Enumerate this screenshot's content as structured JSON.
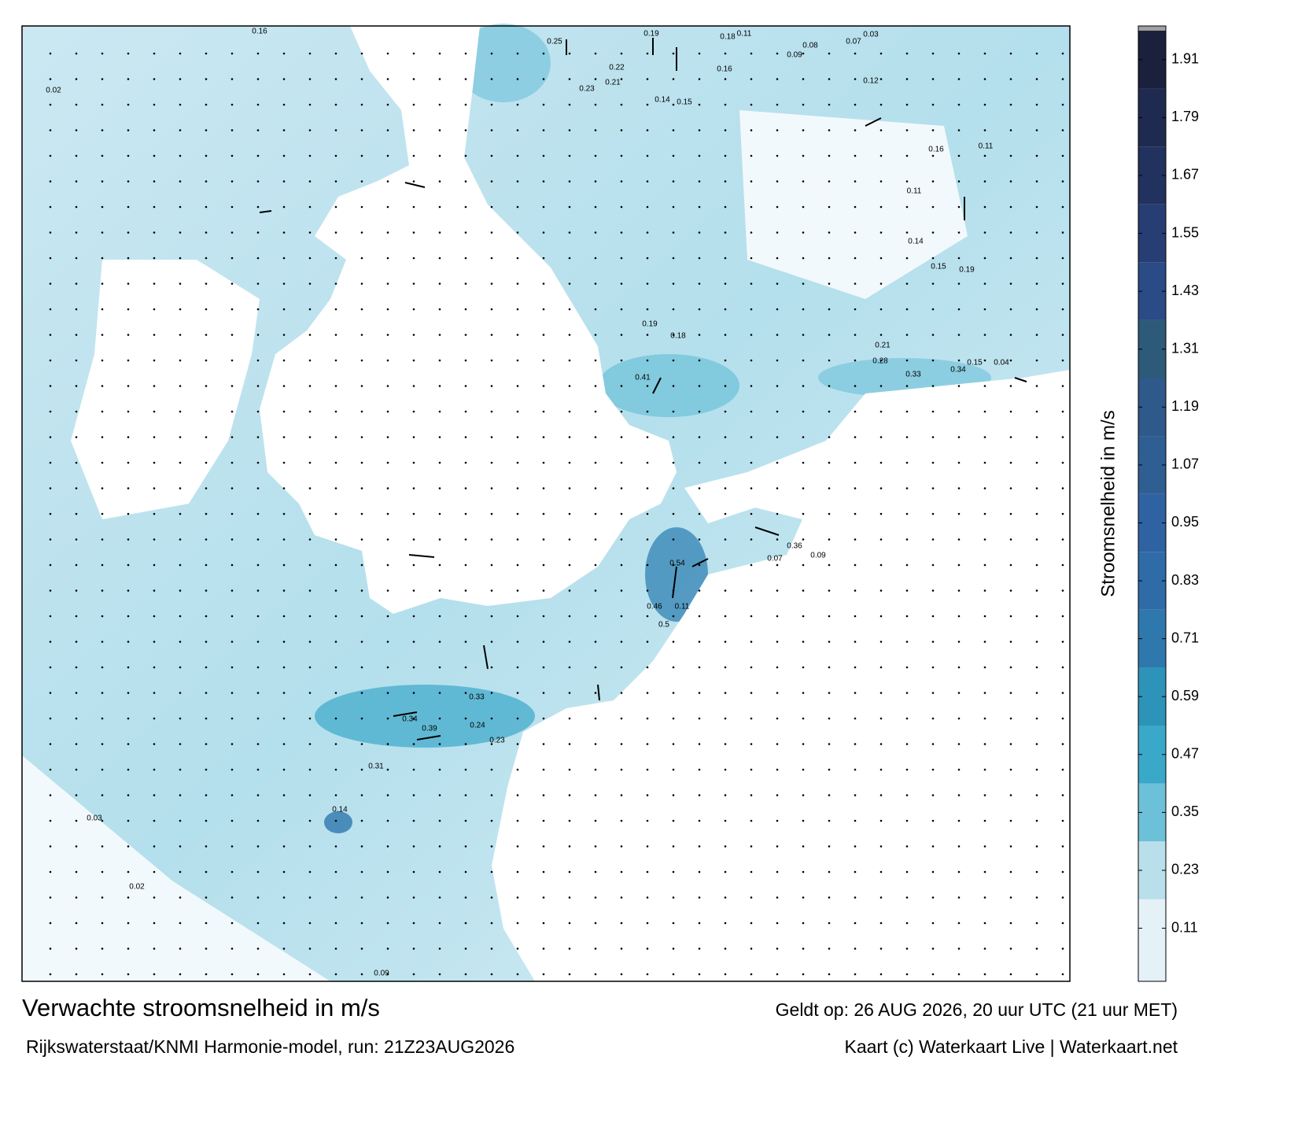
{
  "map": {
    "title": "Verwachte stroomsnelheid in m/s",
    "valid": "Geldt op: 26 AUG 2026, 20 uur UTC (21 uur MET)",
    "model": "Rijkswaterstaat/KNMI Harmonie-model, run: 21Z23AUG2026",
    "credit": "Kaart (c) Waterkaart Live | Waterkaart.net",
    "colorbar": {
      "label": "Stroomsnelheid in m/s",
      "lim": [
        0,
        1.97
      ],
      "ticks": [
        0.11,
        0.23,
        0.35,
        0.47,
        0.59,
        0.71,
        0.83,
        0.95,
        1.07,
        1.19,
        1.31,
        1.43,
        1.55,
        1.67,
        1.79,
        1.91
      ],
      "colors": [
        "#e4f2f7",
        "#b9dfeb",
        "#6cc0d8",
        "#3aa8c9",
        "#2d93b8",
        "#2e78ad",
        "#2f6ba7",
        "#2f62a2",
        "#2f5e93",
        "#2e598a",
        "#2c5a78",
        "#2a4b85",
        "#263e73",
        "#22325f",
        "#1e2a4f",
        "#1b213c"
      ]
    },
    "speed_labels": [
      0.19,
      0.18,
      0.11,
      0.03,
      0.07,
      0.08,
      0.09,
      0.16,
      0.22,
      0.21,
      0.23,
      0.25,
      0.14,
      0.15,
      0.12,
      0.16,
      0.11,
      0.11,
      0.14,
      0.15,
      0.19,
      0.21,
      0.28,
      0.33,
      0.34,
      0.15,
      0.04,
      0.19,
      0.18,
      0.41,
      0.54,
      0.11,
      0.46,
      0.5,
      0.33,
      0.39,
      0.34,
      0.24,
      0.23,
      0.31,
      0.36,
      0.07,
      0.09,
      0.14,
      0.03,
      0.02,
      0.09,
      0.02,
      0.16
    ]
  }
}
